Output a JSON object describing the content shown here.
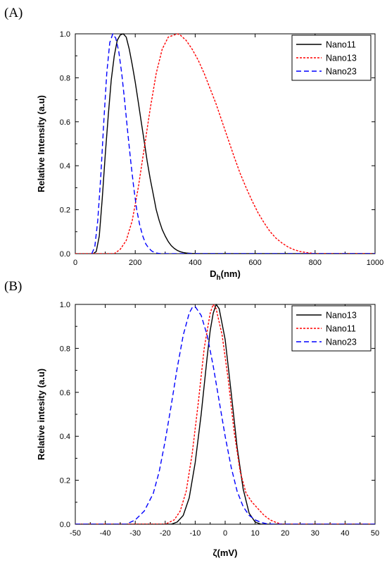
{
  "chart_data": [
    {
      "panel_label": "(A)",
      "type": "line",
      "xlabel_main": "D",
      "xlabel_sub": "h",
      "xlabel_unit": "(nm)",
      "ylabel": "Relative Intensity (a.u)",
      "xlim": [
        0,
        1000
      ],
      "ylim": [
        0,
        1.0
      ],
      "xticks": [
        "0",
        "200",
        "400",
        "600",
        "800",
        "1000"
      ],
      "yticks": [
        "0.0",
        "0.2",
        "0.4",
        "0.6",
        "0.8",
        "1.0"
      ],
      "grid": false,
      "legend_position": "top-right",
      "series": [
        {
          "name": "Nano11",
          "color": "#000000",
          "style": "solid",
          "x": [
            60,
            70,
            80,
            90,
            100,
            110,
            120,
            130,
            140,
            150,
            160,
            170,
            180,
            190,
            200,
            210,
            220,
            230,
            240,
            250,
            260,
            270,
            280,
            290,
            300,
            310,
            320,
            330,
            340,
            350,
            360,
            370,
            380,
            390,
            400,
            410,
            420,
            1000
          ],
          "y": [
            0.0,
            0.01,
            0.08,
            0.25,
            0.45,
            0.63,
            0.79,
            0.9,
            0.97,
            0.995,
            1.0,
            0.985,
            0.93,
            0.86,
            0.78,
            0.69,
            0.6,
            0.51,
            0.42,
            0.34,
            0.27,
            0.2,
            0.15,
            0.11,
            0.08,
            0.055,
            0.037,
            0.024,
            0.015,
            0.009,
            0.005,
            0.003,
            0.002,
            0.001,
            0.0005,
            0.0002,
            0.0,
            0.0
          ]
        },
        {
          "name": "Nano13",
          "color": "#ff0000",
          "style": "dotted",
          "x": [
            0,
            130,
            150,
            170,
            190,
            210,
            230,
            250,
            270,
            290,
            310,
            330,
            340,
            350,
            370,
            390,
            410,
            430,
            450,
            470,
            490,
            510,
            530,
            550,
            570,
            590,
            610,
            630,
            650,
            670,
            690,
            710,
            730,
            750,
            770,
            790,
            800,
            1000
          ],
          "y": [
            0.0,
            0.0,
            0.02,
            0.06,
            0.15,
            0.3,
            0.48,
            0.66,
            0.82,
            0.93,
            0.985,
            0.995,
            1.0,
            0.995,
            0.97,
            0.93,
            0.88,
            0.82,
            0.75,
            0.68,
            0.6,
            0.52,
            0.44,
            0.365,
            0.3,
            0.24,
            0.185,
            0.14,
            0.1,
            0.07,
            0.048,
            0.03,
            0.018,
            0.01,
            0.005,
            0.002,
            0.0,
            0.0
          ]
        },
        {
          "name": "Nano23",
          "color": "#0000ff",
          "style": "dashed",
          "x": [
            55,
            65,
            75,
            85,
            95,
            105,
            115,
            125,
            135,
            145,
            155,
            165,
            175,
            185,
            195,
            205,
            215,
            225,
            235,
            245,
            255,
            265,
            275,
            285,
            1000
          ],
          "y": [
            0.0,
            0.03,
            0.15,
            0.35,
            0.6,
            0.82,
            0.96,
            1.0,
            0.98,
            0.92,
            0.82,
            0.69,
            0.55,
            0.42,
            0.3,
            0.2,
            0.13,
            0.08,
            0.045,
            0.025,
            0.012,
            0.005,
            0.002,
            0.0,
            0.0
          ]
        }
      ]
    },
    {
      "panel_label": "(B)",
      "type": "line",
      "xlabel_main": "ζ",
      "xlabel_sub": "",
      "xlabel_unit": "(mV)",
      "ylabel": "Relative intesity (a.u)",
      "xlim": [
        -50,
        50
      ],
      "ylim": [
        0,
        1.0
      ],
      "xticks": [
        "-50",
        "-40",
        "-30",
        "-20",
        "-10",
        "0",
        "10",
        "20",
        "30",
        "40",
        "50"
      ],
      "yticks": [
        "0.0",
        "0.2",
        "0.4",
        "0.6",
        "0.8",
        "1.0"
      ],
      "grid": false,
      "legend_position": "top-right",
      "series": [
        {
          "name": "Nano13",
          "color": "#000000",
          "style": "solid",
          "x": [
            -50,
            -18,
            -16,
            -14,
            -12,
            -10,
            -8,
            -6,
            -5,
            -4,
            -3,
            -2,
            0,
            2,
            4,
            6,
            8,
            10,
            12,
            50
          ],
          "y": [
            0.0,
            0.0,
            0.01,
            0.04,
            0.12,
            0.28,
            0.5,
            0.76,
            0.88,
            0.96,
            1.0,
            0.98,
            0.84,
            0.6,
            0.35,
            0.16,
            0.05,
            0.01,
            0.0,
            0.0
          ]
        },
        {
          "name": "Nano11",
          "color": "#ff0000",
          "style": "dotted",
          "x": [
            -50,
            -20,
            -17,
            -15,
            -13,
            -11,
            -9,
            -7,
            -5,
            -4,
            -3,
            -1,
            1,
            3,
            5,
            7,
            9,
            11,
            13,
            15,
            17,
            19,
            50
          ],
          "y": [
            0.0,
            0.0,
            0.02,
            0.06,
            0.15,
            0.32,
            0.55,
            0.8,
            0.96,
            1.0,
            0.98,
            0.86,
            0.66,
            0.42,
            0.24,
            0.14,
            0.1,
            0.07,
            0.04,
            0.02,
            0.008,
            0.0,
            0.0
          ]
        },
        {
          "name": "Nano23",
          "color": "#0000ff",
          "style": "dashed",
          "x": [
            -50,
            -33,
            -30,
            -27,
            -24,
            -22,
            -20,
            -18,
            -16,
            -14,
            -12,
            -11,
            -10,
            -8,
            -6,
            -4,
            -2,
            0,
            2,
            4,
            6,
            8,
            10,
            12,
            14,
            16,
            50
          ],
          "y": [
            0.0,
            0.0,
            0.02,
            0.06,
            0.14,
            0.24,
            0.38,
            0.54,
            0.71,
            0.86,
            0.96,
            0.985,
            0.99,
            0.95,
            0.86,
            0.72,
            0.56,
            0.4,
            0.26,
            0.15,
            0.08,
            0.04,
            0.02,
            0.008,
            0.002,
            0.0,
            0.0
          ]
        }
      ]
    }
  ]
}
